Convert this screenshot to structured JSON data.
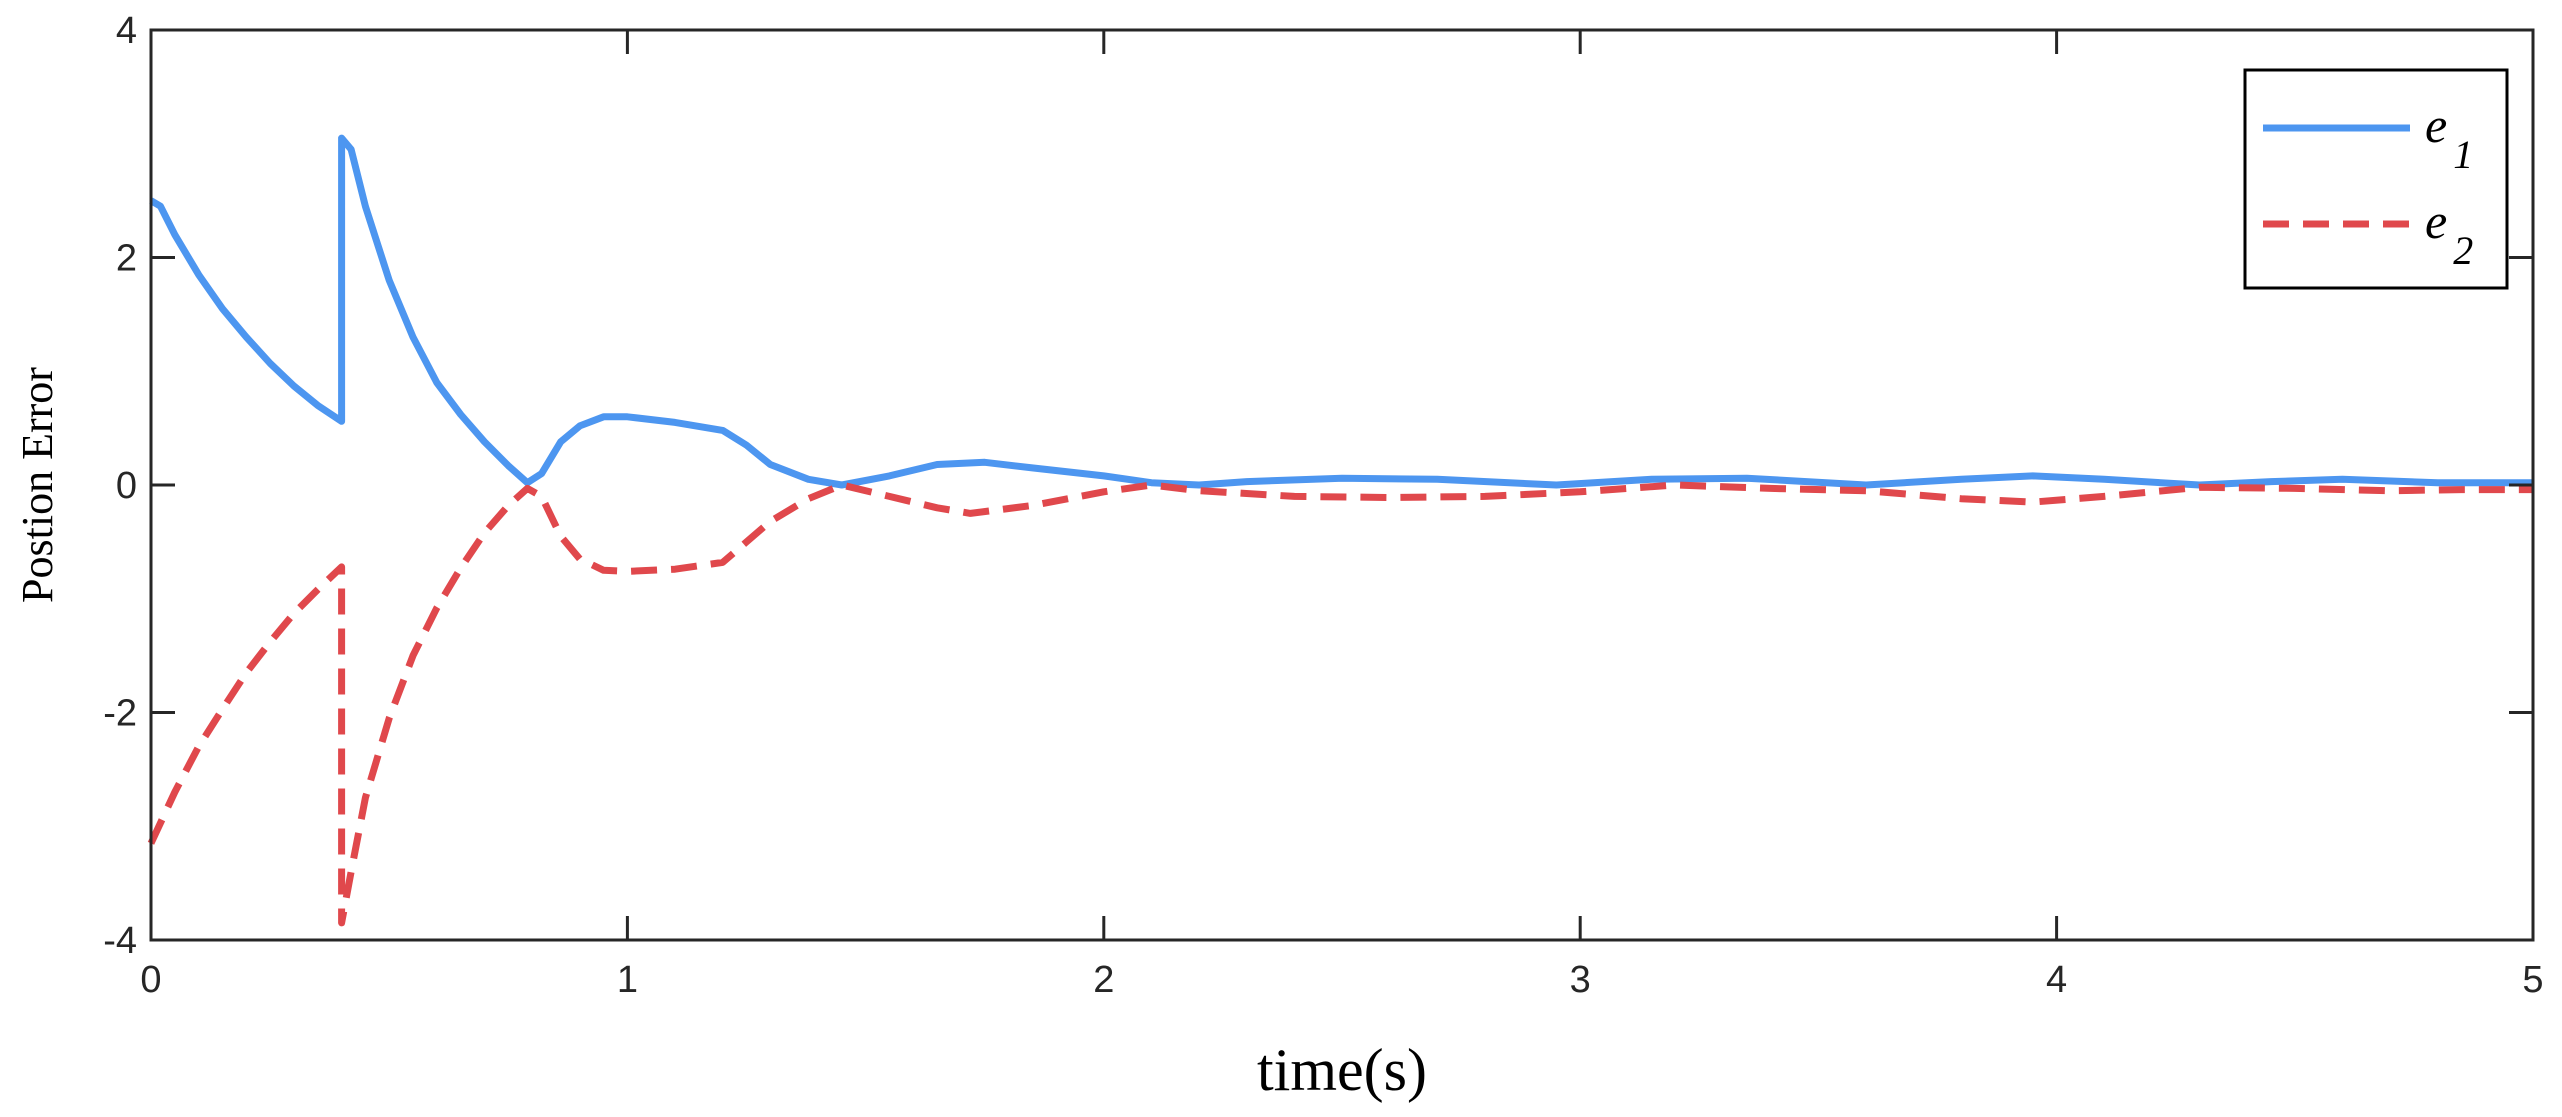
{
  "chart_data": {
    "type": "line",
    "title": "",
    "xlabel": "time(s)",
    "ylabel": "Postion Error",
    "xlim": [
      0,
      5
    ],
    "ylim": [
      -4,
      4
    ],
    "xticks": [
      0,
      1,
      2,
      3,
      4,
      5
    ],
    "yticks": [
      -4,
      -2,
      0,
      2,
      4
    ],
    "grid": false,
    "legend_position": "top-right",
    "series": [
      {
        "name": "e",
        "subscript": "1",
        "color": "#4d96f0",
        "style": "solid",
        "points": [
          [
            0,
            2.5
          ],
          [
            0.02,
            2.45
          ],
          [
            0.05,
            2.2
          ],
          [
            0.1,
            1.85
          ],
          [
            0.15,
            1.55
          ],
          [
            0.2,
            1.3
          ],
          [
            0.25,
            1.07
          ],
          [
            0.3,
            0.87
          ],
          [
            0.35,
            0.7
          ],
          [
            0.4,
            0.56
          ],
          [
            0.4,
            3.05
          ],
          [
            0.42,
            2.95
          ],
          [
            0.45,
            2.45
          ],
          [
            0.5,
            1.8
          ],
          [
            0.55,
            1.3
          ],
          [
            0.6,
            0.9
          ],
          [
            0.65,
            0.62
          ],
          [
            0.7,
            0.38
          ],
          [
            0.75,
            0.17
          ],
          [
            0.79,
            0.02
          ],
          [
            0.82,
            0.1
          ],
          [
            0.86,
            0.38
          ],
          [
            0.9,
            0.52
          ],
          [
            0.95,
            0.6
          ],
          [
            1.0,
            0.6
          ],
          [
            1.1,
            0.55
          ],
          [
            1.2,
            0.48
          ],
          [
            1.25,
            0.35
          ],
          [
            1.3,
            0.18
          ],
          [
            1.38,
            0.05
          ],
          [
            1.45,
            0.0
          ],
          [
            1.55,
            0.08
          ],
          [
            1.65,
            0.18
          ],
          [
            1.75,
            0.2
          ],
          [
            1.85,
            0.15
          ],
          [
            2.0,
            0.08
          ],
          [
            2.1,
            0.02
          ],
          [
            2.2,
            0.0
          ],
          [
            2.3,
            0.03
          ],
          [
            2.5,
            0.06
          ],
          [
            2.7,
            0.05
          ],
          [
            2.95,
            0.0
          ],
          [
            3.15,
            0.05
          ],
          [
            3.35,
            0.06
          ],
          [
            3.6,
            0.0
          ],
          [
            3.8,
            0.05
          ],
          [
            3.95,
            0.08
          ],
          [
            4.1,
            0.05
          ],
          [
            4.3,
            0.0
          ],
          [
            4.45,
            0.03
          ],
          [
            4.6,
            0.05
          ],
          [
            4.8,
            0.02
          ],
          [
            5.0,
            0.02
          ]
        ]
      },
      {
        "name": "e",
        "subscript": "2",
        "color": "#e0484c",
        "style": "dashed",
        "points": [
          [
            0,
            -3.15
          ],
          [
            0.05,
            -2.7
          ],
          [
            0.1,
            -2.3
          ],
          [
            0.15,
            -1.97
          ],
          [
            0.2,
            -1.65
          ],
          [
            0.25,
            -1.38
          ],
          [
            0.3,
            -1.13
          ],
          [
            0.35,
            -0.92
          ],
          [
            0.4,
            -0.72
          ],
          [
            0.4,
            -3.85
          ],
          [
            0.42,
            -3.4
          ],
          [
            0.45,
            -2.75
          ],
          [
            0.5,
            -2.05
          ],
          [
            0.55,
            -1.5
          ],
          [
            0.6,
            -1.08
          ],
          [
            0.65,
            -0.73
          ],
          [
            0.7,
            -0.42
          ],
          [
            0.75,
            -0.18
          ],
          [
            0.79,
            -0.03
          ],
          [
            0.82,
            -0.1
          ],
          [
            0.86,
            -0.45
          ],
          [
            0.9,
            -0.65
          ],
          [
            0.95,
            -0.75
          ],
          [
            1.0,
            -0.76
          ],
          [
            1.1,
            -0.74
          ],
          [
            1.2,
            -0.68
          ],
          [
            1.25,
            -0.5
          ],
          [
            1.3,
            -0.32
          ],
          [
            1.38,
            -0.12
          ],
          [
            1.45,
            0.0
          ],
          [
            1.55,
            -0.1
          ],
          [
            1.65,
            -0.2
          ],
          [
            1.72,
            -0.25
          ],
          [
            1.85,
            -0.18
          ],
          [
            2.0,
            -0.06
          ],
          [
            2.1,
            0.0
          ],
          [
            2.2,
            -0.05
          ],
          [
            2.4,
            -0.1
          ],
          [
            2.6,
            -0.11
          ],
          [
            2.8,
            -0.1
          ],
          [
            3.0,
            -0.06
          ],
          [
            3.2,
            0.0
          ],
          [
            3.4,
            -0.03
          ],
          [
            3.6,
            -0.05
          ],
          [
            3.8,
            -0.12
          ],
          [
            3.95,
            -0.15
          ],
          [
            4.1,
            -0.1
          ],
          [
            4.3,
            -0.02
          ],
          [
            4.5,
            -0.03
          ],
          [
            4.7,
            -0.05
          ],
          [
            4.85,
            -0.04
          ],
          [
            5.0,
            -0.04
          ]
        ]
      }
    ]
  }
}
